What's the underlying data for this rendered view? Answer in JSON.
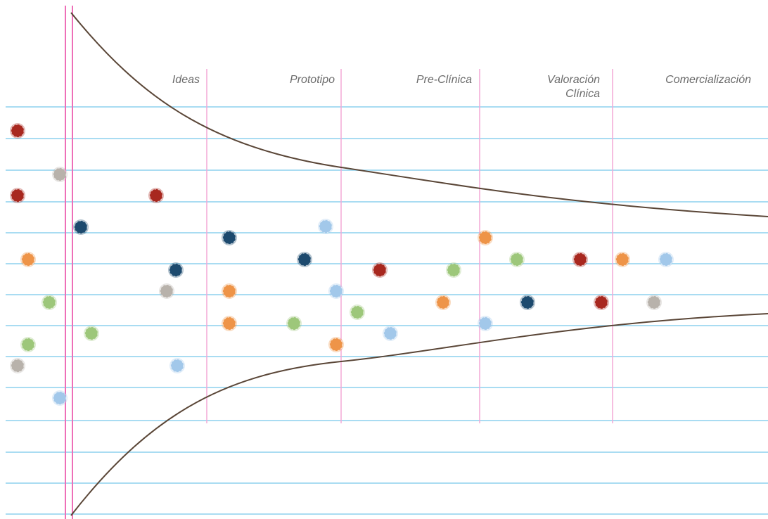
{
  "stages": [
    {
      "lines": [
        "Ideas"
      ]
    },
    {
      "lines": [
        "Prototipo"
      ]
    },
    {
      "lines": [
        "Pre-Clínica"
      ]
    },
    {
      "lines": [
        "Valoración",
        "Clínica"
      ]
    },
    {
      "lines": [
        "Comercialización"
      ]
    }
  ],
  "colors": {
    "rule_line": "#a9dcf2",
    "margin_line": "#ee6fb8",
    "stage_divider": "#f4a8d6",
    "funnel_curve": "#5a4637",
    "dot_red": "#a8281f",
    "dot_grey": "#b8b2ab",
    "dot_navy": "#1d4a6e",
    "dot_orange": "#ee9448",
    "dot_green": "#9dc77a",
    "dot_lightblue": "#a2c8ea"
  }
}
